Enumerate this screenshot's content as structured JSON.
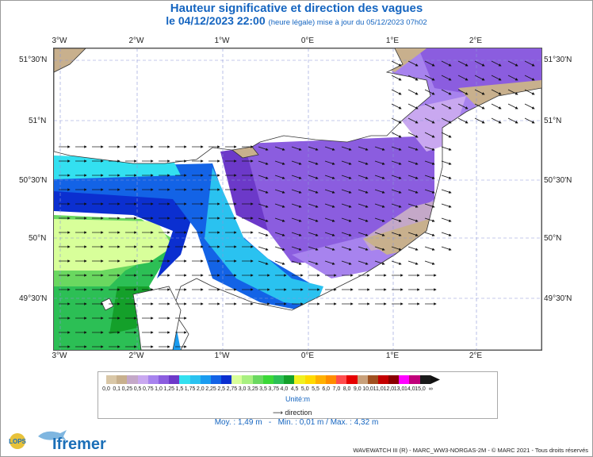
{
  "title": "Hauteur significative et direction des vagues",
  "subtitle_date": "le 04/12/2023 22:00",
  "subtitle_note": "(heure légale) mise à jour du 05/12/2023 07h02",
  "lon_labels": [
    "3°W",
    "2°W",
    "1°W",
    "0°E",
    "1°E",
    "2°E"
  ],
  "lat_labels": [
    "51°30'N",
    "51°N",
    "50°30'N",
    "50°N",
    "49°30'N"
  ],
  "legend": {
    "ticks": [
      "0,0",
      "0,1",
      "0,25",
      "0,5",
      "0,75",
      "1,0",
      "1,25",
      "1,5",
      "1,75",
      "2,0",
      "2,25",
      "2,5",
      "2,75",
      "3,0",
      "3,25",
      "3,5",
      "3,75",
      "4,0",
      "4,5",
      "5,0",
      "5,5",
      "6,0",
      "7,0",
      "8,0",
      "9,0",
      "10,0",
      "11,0",
      "12,0",
      "13,0",
      "14,0",
      "15,0",
      "∞"
    ],
    "colors": [
      "#d9c7a7",
      "#c8b08d",
      "#c4a8c8",
      "#c9a8f0",
      "#a783ee",
      "#8b5ddf",
      "#6c39c9",
      "#33e0f0",
      "#2ac2f0",
      "#1a9cf0",
      "#1363e6",
      "#0b2fd0",
      "#d8ff9a",
      "#a8f080",
      "#6ad860",
      "#3bd838",
      "#2cbf55",
      "#14a02a",
      "#f0f020",
      "#ffd900",
      "#ffb000",
      "#ff8c00",
      "#ff4d4d",
      "#e60000",
      "#c8a07a",
      "#a05020",
      "#c40000",
      "#8a0000",
      "#ff00ff",
      "#c0007a",
      "#1a1a1a"
    ],
    "unit": "Unité:m",
    "direction_label": "direction"
  },
  "stats": {
    "moy": "Moy. : 1,49 m",
    "sep": "-",
    "minmax": "Min. : 0,01 m / Max. : 4,32 m"
  },
  "footer": "WAVEWATCH III (R) - MARC_WW3-NORGAS-2M - © MARC 2021 - Tous droits réservés",
  "logos": {
    "lops": "LOPS",
    "ifremer": "Ifremer"
  }
}
